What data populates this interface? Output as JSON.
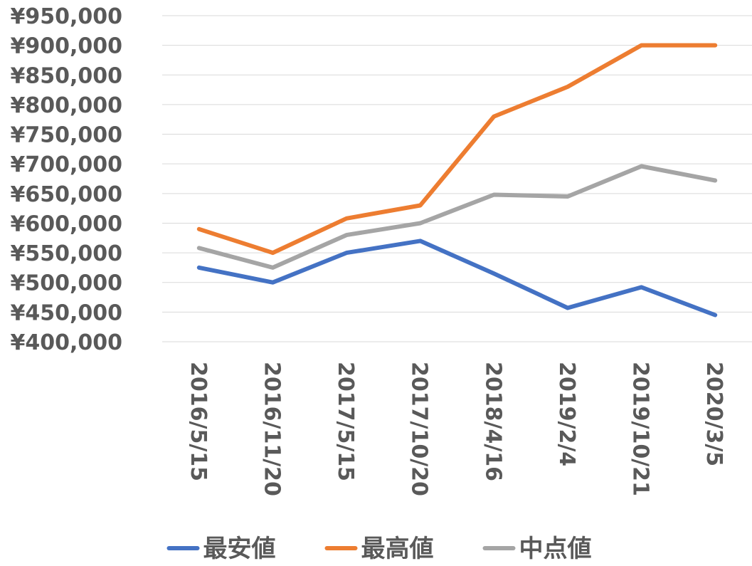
{
  "chart_data": {
    "type": "line",
    "title": "",
    "xlabel": "",
    "ylabel": "",
    "categories": [
      "2016/5/15",
      "2016/11/20",
      "2017/5/15",
      "2017/10/20",
      "2018/4/16",
      "2019/2/4",
      "2019/10/21",
      "2020/3/5"
    ],
    "series": [
      {
        "name": "最安値",
        "color": "#4472C4",
        "values": [
          525000,
          500000,
          550000,
          570000,
          515000,
          457000,
          492000,
          445000
        ]
      },
      {
        "name": "最高値",
        "color": "#ED7D31",
        "values": [
          590000,
          550000,
          608000,
          630000,
          780000,
          830000,
          900000,
          900000
        ]
      },
      {
        "name": "中点値",
        "color": "#A5A5A5",
        "values": [
          558000,
          525000,
          580000,
          600000,
          648000,
          645000,
          696000,
          672000
        ]
      }
    ],
    "ylim": [
      400000,
      950000
    ],
    "ytick_step": 50000,
    "ytick_labels": [
      "¥400,000",
      "¥450,000",
      "¥500,000",
      "¥550,000",
      "¥600,000",
      "¥650,000",
      "¥700,000",
      "¥750,000",
      "¥800,000",
      "¥850,000",
      "¥900,000",
      "¥950,000"
    ],
    "grid": true,
    "legend_position": "bottom"
  }
}
